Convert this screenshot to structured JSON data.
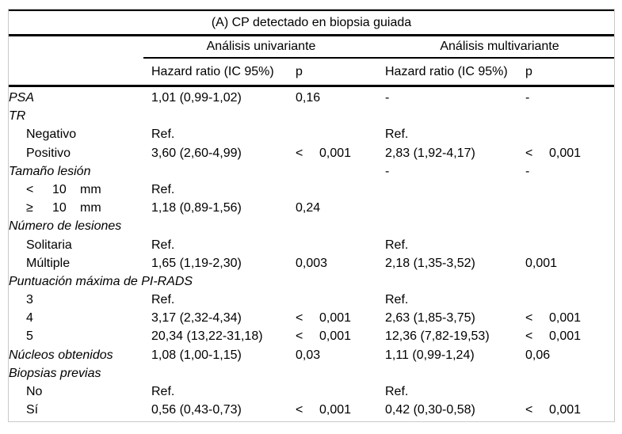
{
  "table": {
    "title": "(A) CP detectado en biopsia guiada",
    "groups": [
      {
        "label": "Análisis univariante"
      },
      {
        "label": "Análisis multivariante"
      }
    ],
    "subheaders": {
      "hr": "Hazard ratio (IC 95%)",
      "p": "p"
    },
    "rows": [
      {
        "label": "PSA",
        "italic": true,
        "hr1": "1,01 (0,99-1,02)",
        "p1": "0,16",
        "hr2": "-",
        "p2": "-"
      },
      {
        "label": "TR",
        "italic": true,
        "hr1": "",
        "p1": "",
        "hr2": "",
        "p2": ""
      },
      {
        "label": "Negativo",
        "indent": true,
        "hr1": "Ref.",
        "p1": "",
        "hr2": "Ref.",
        "p2": ""
      },
      {
        "label": "Positivo",
        "indent": true,
        "hr1": "3,60 (2,60-4,99)",
        "p1": "< 0,001",
        "hr2": "2,83 (1,92-4,17)",
        "p2": "< 0,001"
      },
      {
        "label": "Tamaño lesión",
        "italic": true,
        "hr1": "",
        "p1": "",
        "hr2": "-",
        "p2": "-"
      },
      {
        "label": "< 10 mm",
        "label_parts": [
          "<",
          "10",
          "mm"
        ],
        "indent": true,
        "hr1": "Ref.",
        "p1": "",
        "hr2": "",
        "p2": ""
      },
      {
        "label": "≥ 10 mm",
        "label_parts": [
          "≥",
          "10",
          "mm"
        ],
        "indent": true,
        "hr1": "1,18 (0,89-1,56)",
        "p1": "0,24",
        "hr2": "",
        "p2": ""
      },
      {
        "label": "Número de lesiones",
        "italic": true,
        "hr1": "",
        "p1": "",
        "hr2": "",
        "p2": ""
      },
      {
        "label": "Solitaria",
        "indent": true,
        "hr1": "Ref.",
        "p1": "",
        "hr2": "Ref.",
        "p2": ""
      },
      {
        "label": "Múltiple",
        "indent": true,
        "hr1": "1,65 (1,19-2,30)",
        "p1": "0,003",
        "hr2": "2,18 (1,35-3,52)",
        "p2": "0,001"
      },
      {
        "label": "Puntuación máxima de PI-RADS",
        "italic": true,
        "hr1": "",
        "p1": "",
        "hr2": "",
        "p2": ""
      },
      {
        "label": "3",
        "indent": true,
        "hr1": "Ref.",
        "p1": "",
        "hr2": "Ref.",
        "p2": ""
      },
      {
        "label": "4",
        "indent": true,
        "hr1": "3,17 (2,32-4,34)",
        "p1": "< 0,001",
        "hr2": "2,63 (1,85-3,75)",
        "p2": "< 0,001"
      },
      {
        "label": "5",
        "indent": true,
        "hr1": "20,34 (13,22-31,18)",
        "p1": "< 0,001",
        "hr2": "12,36 (7,82-19,53)",
        "p2": "< 0,001"
      },
      {
        "label": "Núcleos obtenidos",
        "italic": true,
        "hr1": "1,08 (1,00-1,15)",
        "p1": "0,03",
        "hr2": "1,11 (0,99-1,24)",
        "p2": "0,06"
      },
      {
        "label": "Biopsias previas",
        "italic": true,
        "hr1": "",
        "p1": "",
        "hr2": "",
        "p2": ""
      },
      {
        "label": "No",
        "indent": true,
        "hr1": "Ref.",
        "p1": "",
        "hr2": "Ref.",
        "p2": ""
      },
      {
        "label": "Sí",
        "indent": true,
        "hr1": "0,56 (0,43-0,73)",
        "p1": "< 0,001",
        "hr2": "0,42 (0,30-0,58)",
        "p2": "< 0,001"
      }
    ],
    "colors": {
      "text": "#000000",
      "rule": "#000000",
      "frame": "#c9c9c9",
      "background": "#ffffff"
    }
  }
}
